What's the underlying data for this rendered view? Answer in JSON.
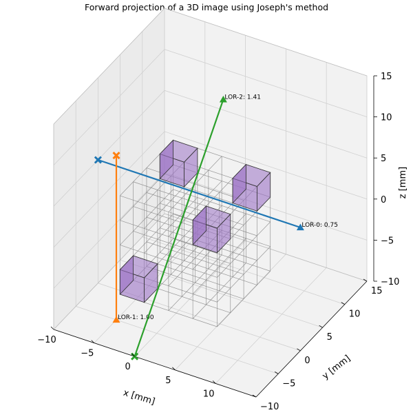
{
  "chart_data": {
    "type": "3d-line",
    "title": "Forward projection of a 3D image using Joseph's method",
    "xlabel": "x [mm]",
    "ylabel": "y [mm]",
    "zlabel": "z [mm]",
    "xlim": [
      -10,
      15
    ],
    "ylim": [
      -10,
      15
    ],
    "zlim": [
      -10,
      15
    ],
    "xticks": [
      "−10",
      "−5",
      "0",
      "5",
      "10"
    ],
    "yticks": [
      "−10",
      "−5",
      "0",
      "5",
      "10",
      "15"
    ],
    "zticks": [
      "−10",
      "−5",
      "0",
      "5",
      "10",
      "15"
    ],
    "grid": true,
    "image_grid": {
      "shape": [
        4,
        4,
        4
      ],
      "x_range": [
        -4,
        8
      ],
      "y_range": [
        -6,
        6
      ],
      "z_range": [
        -6,
        6
      ]
    },
    "highlighted_voxels": [
      {
        "x": [
          -4,
          -1
        ],
        "y": [
          -6,
          -3
        ],
        "z": [
          -6,
          -3
        ],
        "color": "#9b72c4"
      },
      {
        "x": [
          -4,
          -1
        ],
        "y": [
          3,
          6
        ],
        "z": [
          3,
          6
        ],
        "color": "#9b72c4"
      },
      {
        "x": [
          5,
          8
        ],
        "y": [
          -6,
          -3
        ],
        "z": [
          3,
          6
        ],
        "color": "#9b72c4"
      },
      {
        "x": [
          5,
          8
        ],
        "y": [
          3,
          6
        ],
        "z": [
          3,
          6
        ],
        "color": "#9b72c4"
      }
    ],
    "series": [
      {
        "label": "LOR-0: 0.75",
        "color": "#1f77b4",
        "start": [
          -10,
          0,
          5
        ],
        "end": [
          15,
          0,
          5
        ]
      },
      {
        "label": "LOR-1: 1.00",
        "color": "#ff7f0e",
        "start": [
          -5,
          -5,
          10
        ],
        "end": [
          -5,
          -5,
          -10
        ]
      },
      {
        "label": "LOR-2: 1.41",
        "color": "#2ca02c",
        "start": [
          0,
          -10,
          -10
        ],
        "end": [
          0,
          10,
          10
        ]
      }
    ]
  }
}
